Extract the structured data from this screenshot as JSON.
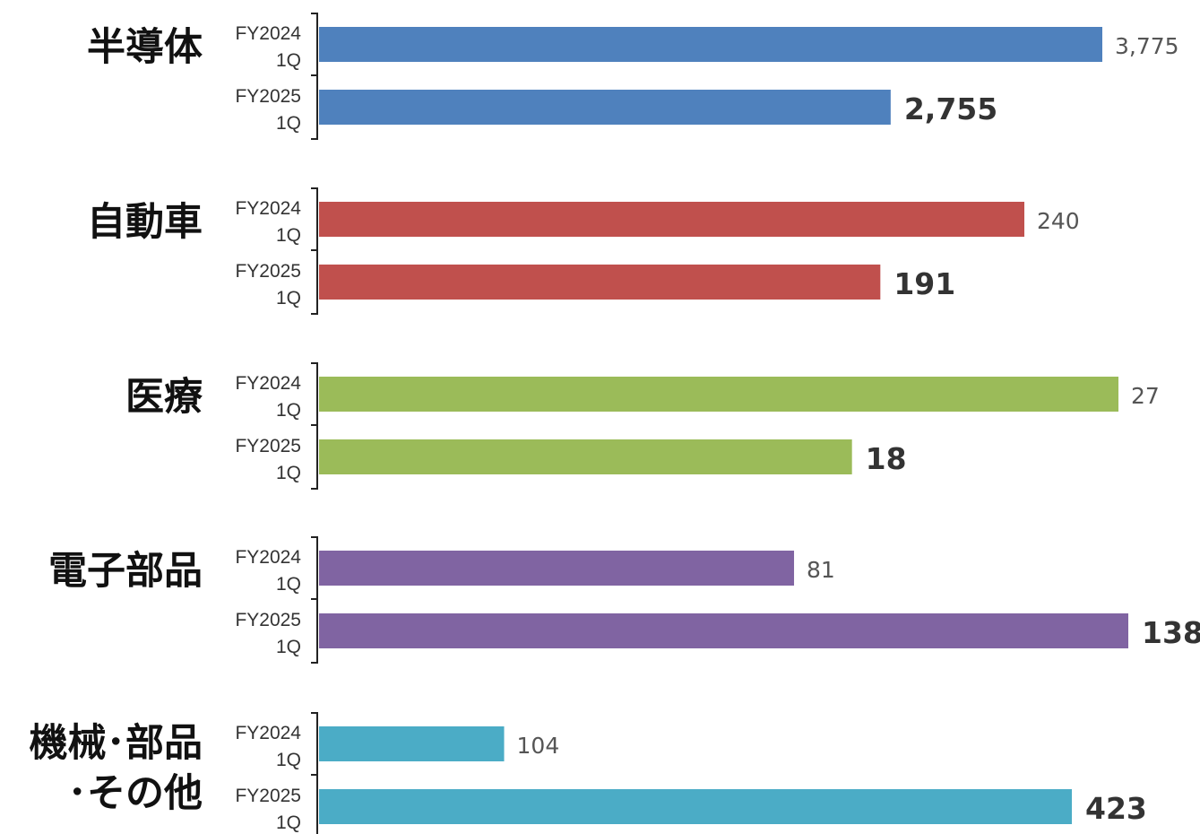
{
  "chart_data": {
    "type": "bar",
    "orientation": "horizontal",
    "legend": "none",
    "grid": false,
    "groups": [
      {
        "name": "半導体",
        "label_lines": [
          "半導体"
        ],
        "color": "#4F81BD",
        "bars": [
          {
            "period": [
              "FY2024",
              "1Q"
            ],
            "value": 3775,
            "label": "3,775"
          },
          {
            "period": [
              "FY2025",
              "1Q"
            ],
            "value": 2755,
            "label": "2,755"
          }
        ]
      },
      {
        "name": "自動車",
        "label_lines": [
          "自動車"
        ],
        "color": "#C0504D",
        "bars": [
          {
            "period": [
              "FY2024",
              "1Q"
            ],
            "value": 240,
            "label": "240"
          },
          {
            "period": [
              "FY2025",
              "1Q"
            ],
            "value": 191,
            "label": "191"
          }
        ]
      },
      {
        "name": "医療",
        "label_lines": [
          "医療"
        ],
        "color": "#9BBB59",
        "bars": [
          {
            "period": [
              "FY2024",
              "1Q"
            ],
            "value": 27,
            "label": "27"
          },
          {
            "period": [
              "FY2025",
              "1Q"
            ],
            "value": 18,
            "label": "18"
          }
        ]
      },
      {
        "name": "電子部品",
        "label_lines": [
          "電子部品"
        ],
        "color": "#8064A2",
        "bars": [
          {
            "period": [
              "FY2024",
              "1Q"
            ],
            "value": 81,
            "label": "81"
          },
          {
            "period": [
              "FY2025",
              "1Q"
            ],
            "value": 138,
            "label": "138"
          }
        ]
      },
      {
        "name": "機械・部品・その他",
        "label_lines": [
          "機械･部品",
          "･その他"
        ],
        "color": "#4BACC6",
        "bars": [
          {
            "period": [
              "FY2024",
              "1Q"
            ],
            "value": 104,
            "label": "104"
          },
          {
            "period": [
              "FY2025",
              "1Q"
            ],
            "value": 423,
            "label": "423"
          }
        ]
      }
    ]
  }
}
